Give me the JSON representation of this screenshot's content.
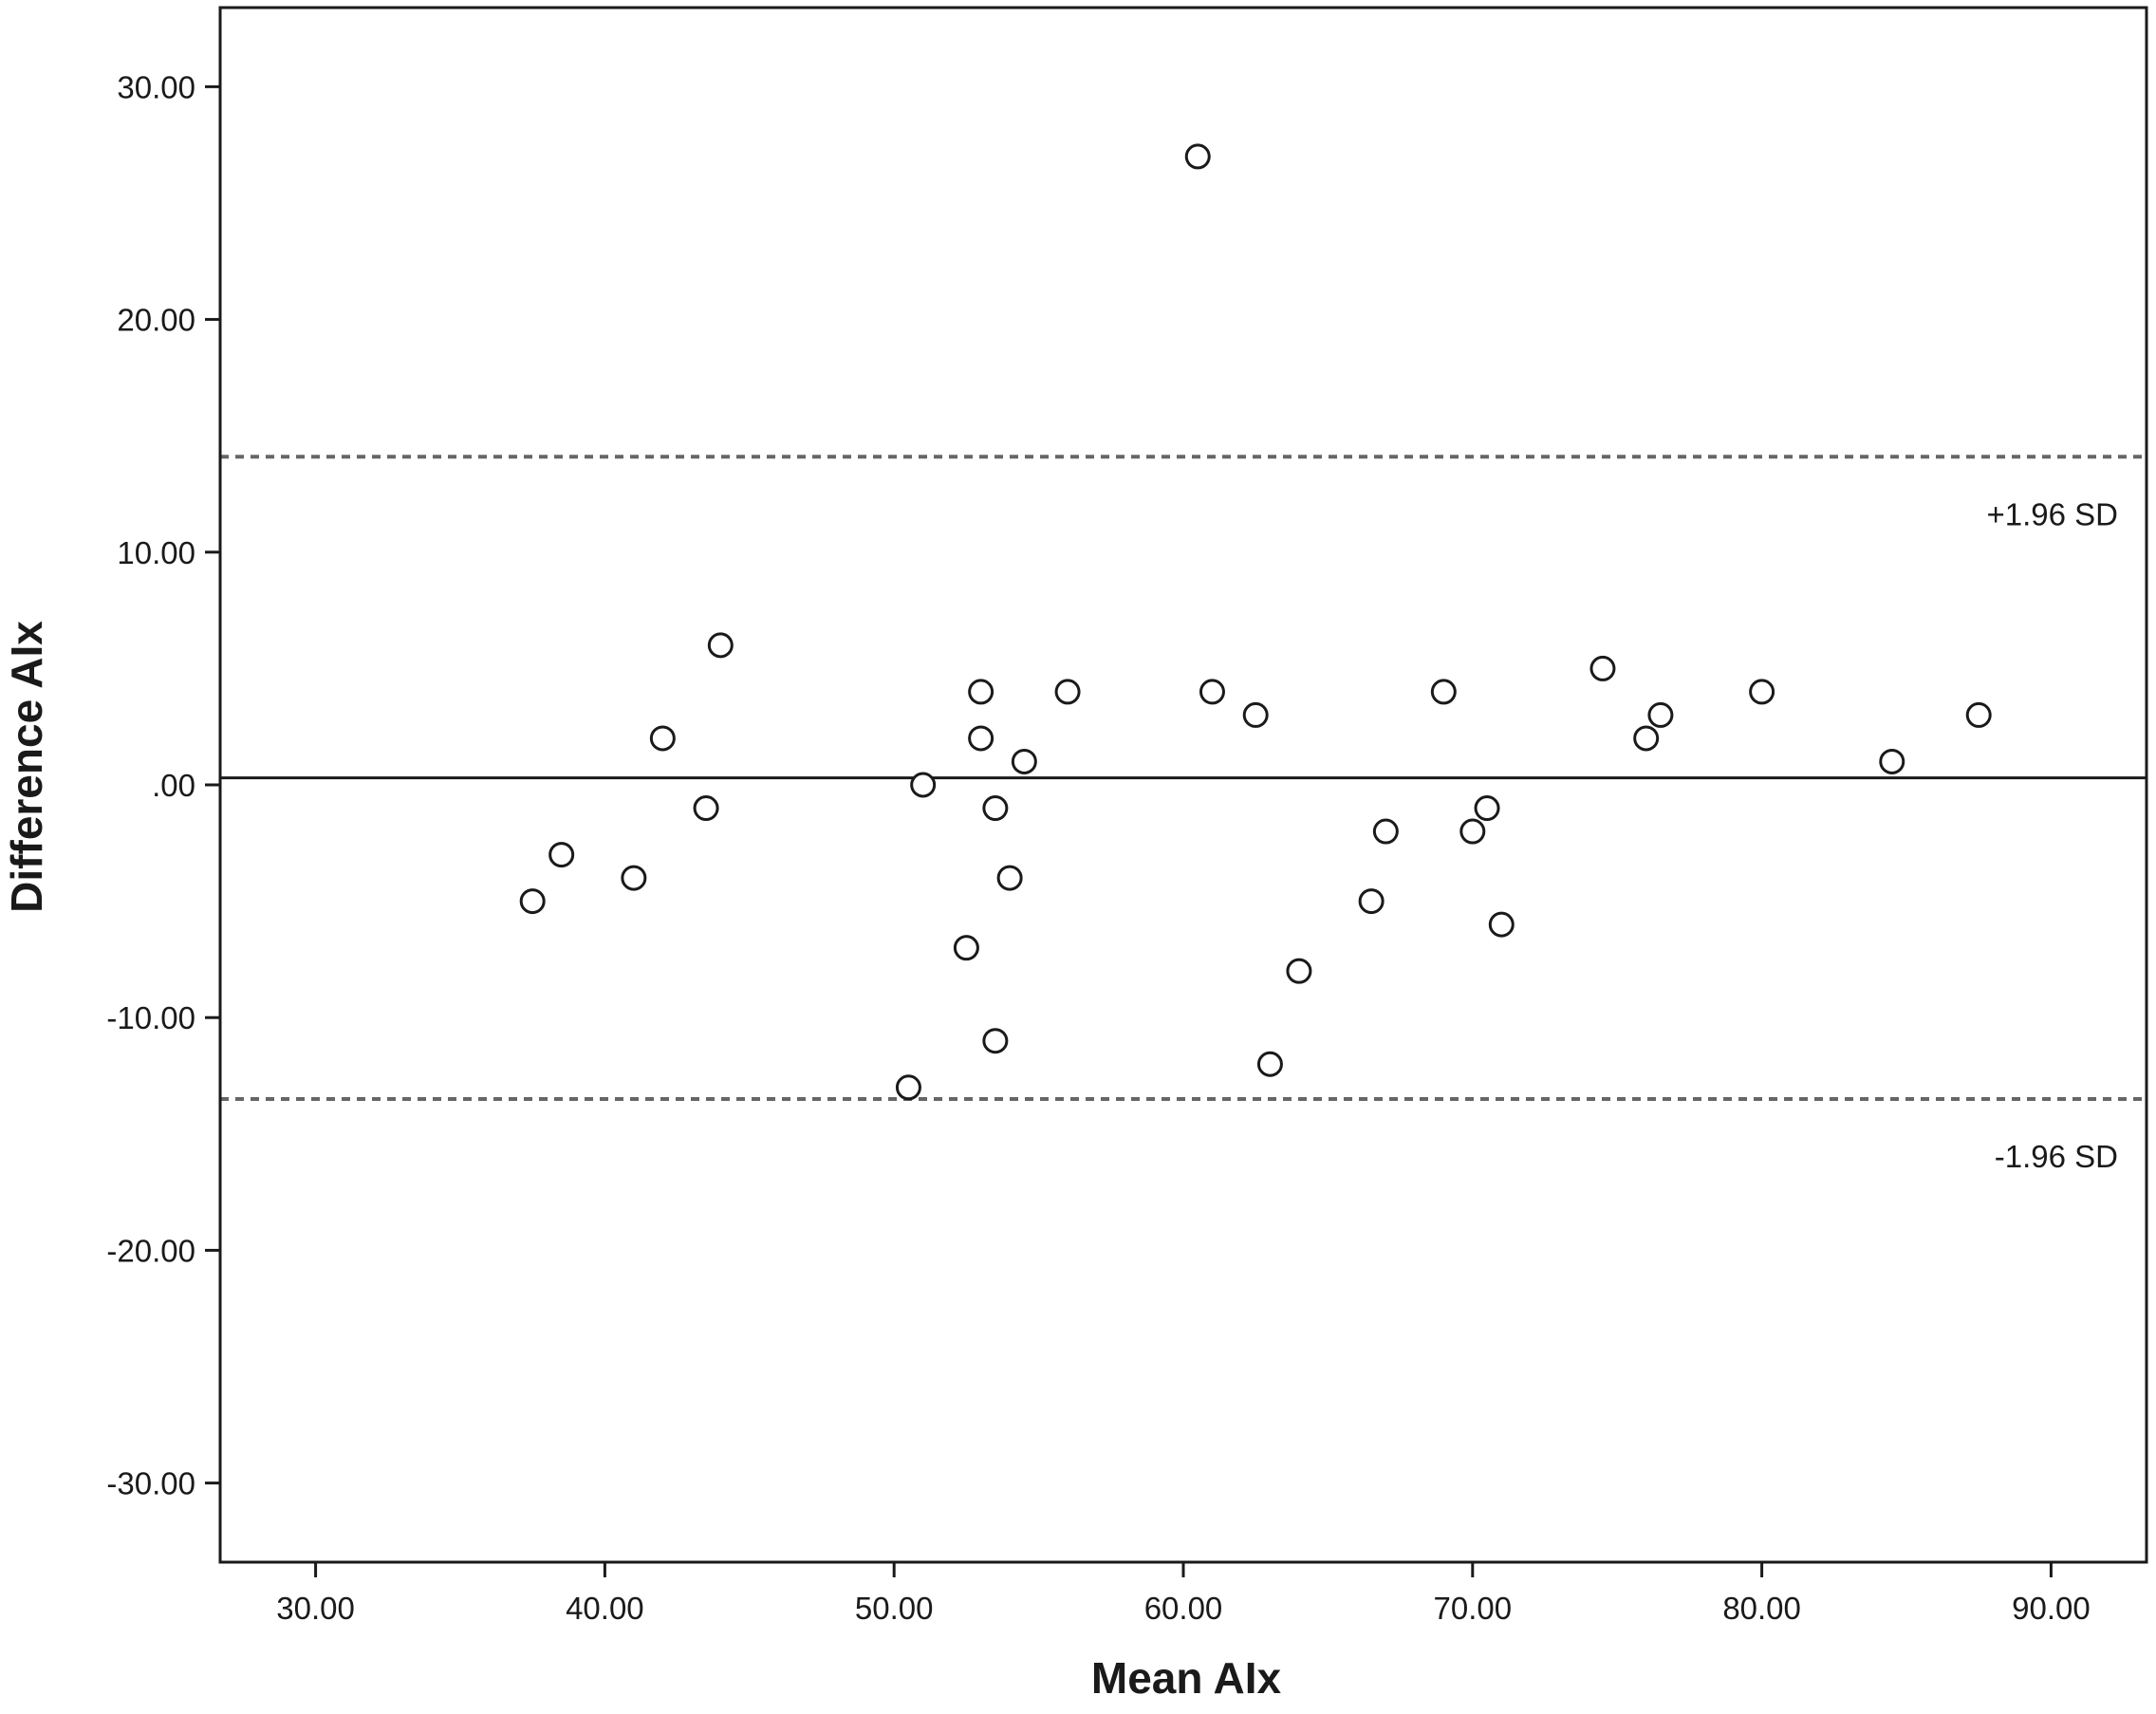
{
  "chart_data": {
    "type": "scatter",
    "title": "",
    "xlabel": "Mean AIx",
    "ylabel": "Difference AIx",
    "xlim": [
      26.7,
      93.3
    ],
    "ylim": [
      -33.4,
      33.4
    ],
    "x_ticks": [
      30,
      40,
      50,
      60,
      70,
      80,
      90
    ],
    "x_tick_labels": [
      "30.00",
      "40.00",
      "50.00",
      "60.00",
      "70.00",
      "80.00",
      "90.00"
    ],
    "y_ticks": [
      30,
      20,
      10,
      0,
      -10,
      -20,
      -30
    ],
    "y_tick_labels": [
      "30.00",
      "20.00",
      "10.00",
      ".00",
      "-10.00",
      "-20.00",
      "-30.00"
    ],
    "grid": false,
    "reference_lines": [
      {
        "kind": "mean",
        "y": 0.3,
        "style": "solid",
        "label": ""
      },
      {
        "kind": "upper_limit",
        "y": 14.1,
        "style": "dashed",
        "label": "+1.96 SD"
      },
      {
        "kind": "lower_limit",
        "y": -13.5,
        "style": "dashed",
        "label": "-1.96 SD"
      }
    ],
    "points": [
      {
        "x": 37.5,
        "y": -5
      },
      {
        "x": 38.5,
        "y": -3
      },
      {
        "x": 41.0,
        "y": -4
      },
      {
        "x": 42.0,
        "y": 2
      },
      {
        "x": 43.5,
        "y": -1
      },
      {
        "x": 44.0,
        "y": 6
      },
      {
        "x": 50.5,
        "y": -13
      },
      {
        "x": 51.0,
        "y": 0
      },
      {
        "x": 52.5,
        "y": -7
      },
      {
        "x": 53.0,
        "y": 4
      },
      {
        "x": 53.0,
        "y": 2
      },
      {
        "x": 53.5,
        "y": -1
      },
      {
        "x": 53.5,
        "y": -11
      },
      {
        "x": 54.0,
        "y": -4
      },
      {
        "x": 54.5,
        "y": 1
      },
      {
        "x": 56.0,
        "y": 4
      },
      {
        "x": 60.5,
        "y": 27
      },
      {
        "x": 61.0,
        "y": 4
      },
      {
        "x": 62.5,
        "y": 3
      },
      {
        "x": 63.0,
        "y": -12
      },
      {
        "x": 64.0,
        "y": -8
      },
      {
        "x": 66.5,
        "y": -5
      },
      {
        "x": 67.0,
        "y": -2
      },
      {
        "x": 69.0,
        "y": 4
      },
      {
        "x": 70.0,
        "y": -2
      },
      {
        "x": 70.5,
        "y": -1
      },
      {
        "x": 71.0,
        "y": -6
      },
      {
        "x": 74.5,
        "y": 5
      },
      {
        "x": 76.0,
        "y": 2
      },
      {
        "x": 76.5,
        "y": 3
      },
      {
        "x": 80.0,
        "y": 4
      },
      {
        "x": 84.5,
        "y": 1
      },
      {
        "x": 87.5,
        "y": 3
      }
    ]
  }
}
